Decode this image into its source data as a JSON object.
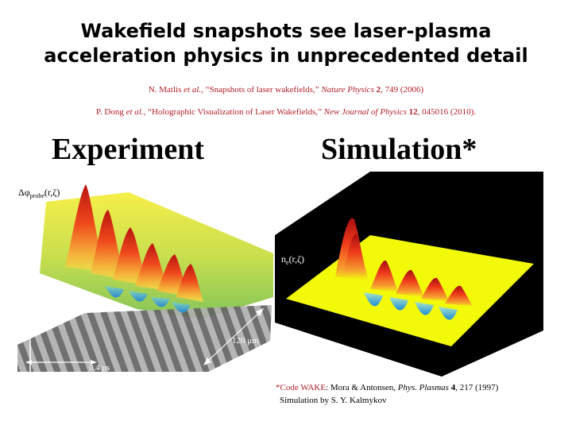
{
  "title": {
    "line1": "Wakefield snapshots see laser-plasma",
    "line2": "acceleration physics in unprecedented detail"
  },
  "references": [
    {
      "authors": "N. Matlis ",
      "etal": "et al.",
      "title": ", “Snapshots of laser wakefields,” ",
      "journal": "Nature Physics",
      "volume": " 2",
      "pages": ", 749 (2006)"
    },
    {
      "authors": "P. Dong ",
      "etal": "et al.",
      "title": ", “Holographic Visualization of Laser Wakefields,” ",
      "journal": "New Journal of Physics",
      "volume": " 12",
      "pages": ", 045016 (2010)."
    }
  ],
  "experiment": {
    "heading": "Experiment",
    "axis_label": "Δφ",
    "axis_label_sub": "probe",
    "axis_label_args": "(r,ζ)",
    "scale_width": "120 μm",
    "scale_time": "0.4 ps"
  },
  "simulation": {
    "heading": "Simulation*",
    "axis_label": "n",
    "axis_label_sub": "e",
    "axis_label_args": "(r,ζ)"
  },
  "credit": {
    "code_prefix": "*Code WAKE",
    "code_rest": ": Mora & Antonsen, ",
    "journal": "Phys. Plasmas",
    "volume": " 4",
    "pages": ", 217 (1997)",
    "line2": "Simulation by S. Y. Kalmykov"
  },
  "colors": {
    "accent": "#b3202a",
    "sim_floor": "#f2fa0a",
    "sim_background": "#000000"
  }
}
